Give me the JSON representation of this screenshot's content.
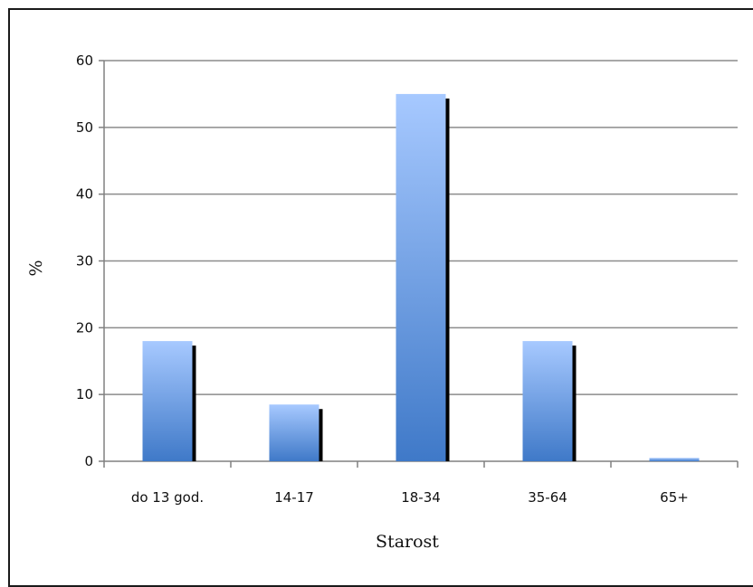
{
  "chart_data": {
    "type": "bar",
    "categories": [
      "do 13 god.",
      "14-17",
      "18-34",
      "35-64",
      "65+"
    ],
    "values": [
      18,
      8.5,
      55,
      18,
      0.5
    ],
    "xlabel": "Starost",
    "ylabel": "%",
    "ylim": [
      0,
      60
    ],
    "yticks": [
      0,
      10,
      20,
      30,
      40,
      50,
      60
    ],
    "grid": true,
    "legend": "none",
    "colors": {
      "bar_top": "#a7c9ff",
      "bar_bottom": "#3f79c8",
      "shadow": "#000000",
      "grid": "#8c8c8c"
    }
  }
}
